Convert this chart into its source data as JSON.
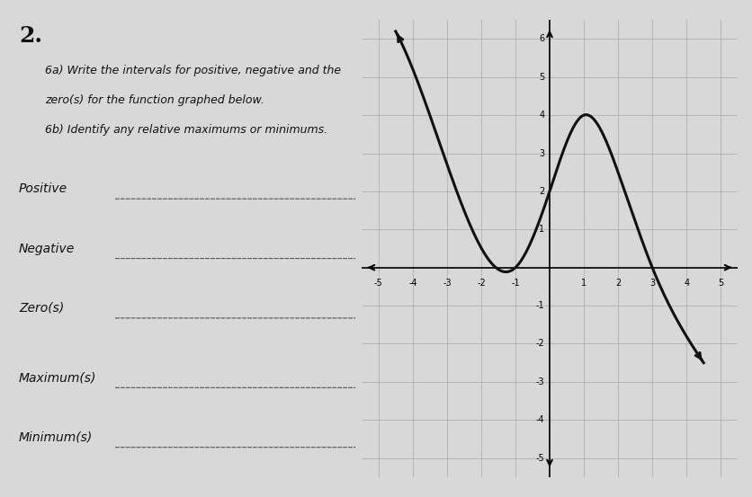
{
  "title": "2.",
  "instructions_line1": "6a) Write the intervals for positive, negative and the",
  "instructions_line2": "zero(s) for the function graphed below.",
  "instructions_line3": "6b) Identify any relative maximums or minimums.",
  "label_positive": "Positive",
  "label_negative": "Negative",
  "label_zeros": "Zero(s)",
  "label_max": "Maximum(s)",
  "label_min": "Minimum(s)",
  "xlim": [
    -5.5,
    5.5
  ],
  "ylim": [
    -5.5,
    6.5
  ],
  "xticks": [
    -5,
    -4,
    -3,
    -2,
    -1,
    1,
    2,
    3,
    4,
    5
  ],
  "yticks": [
    -5,
    -4,
    -3,
    -2,
    -1,
    1,
    2,
    3,
    4,
    5,
    6
  ],
  "grid_color": "#aaaaaa",
  "curve_color": "#111111",
  "background_color": "#d8d8d8",
  "text_color": "#111111",
  "line_color": "#555555"
}
